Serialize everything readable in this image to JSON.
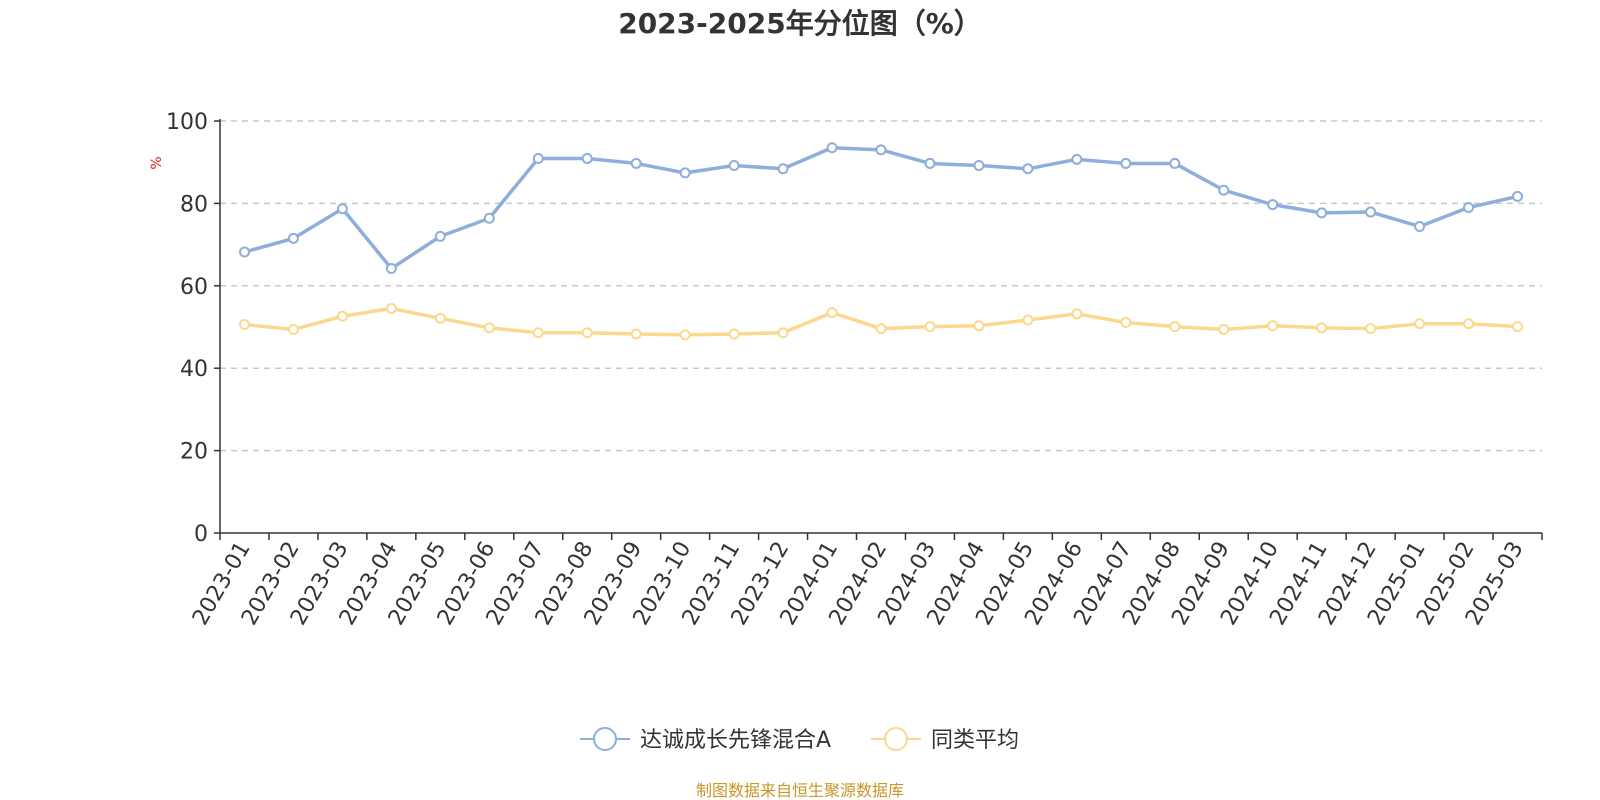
{
  "chart_data": {
    "type": "line",
    "title": "2023-2025年分位图（%）",
    "ylabel": "%",
    "ylim": [
      0,
      100
    ],
    "yticks": [
      0,
      20,
      40,
      60,
      80,
      100
    ],
    "grid": true,
    "legend_position": "bottom-center",
    "categories": [
      "2023-01",
      "2023-02",
      "2023-03",
      "2023-04",
      "2023-05",
      "2023-06",
      "2023-07",
      "2023-08",
      "2023-09",
      "2023-10",
      "2023-11",
      "2023-12",
      "2024-01",
      "2024-02",
      "2024-03",
      "2024-04",
      "2024-05",
      "2024-06",
      "2024-07",
      "2024-08",
      "2024-09",
      "2024-10",
      "2024-11",
      "2024-12",
      "2025-01",
      "2025-02",
      "2025-03"
    ],
    "series": [
      {
        "name": "达诚成长先锋混合A",
        "color": "#8eaedb",
        "values": [
          68.2,
          71.5,
          78.7,
          64.2,
          72.0,
          76.4,
          90.9,
          90.9,
          89.7,
          87.4,
          89.2,
          88.4,
          93.5,
          93.0,
          89.7,
          89.2,
          88.4,
          90.7,
          89.7,
          89.7,
          83.2,
          79.7,
          77.7,
          77.9,
          74.4,
          79.0,
          81.7
        ]
      },
      {
        "name": "同类平均",
        "color": "#fcd88f",
        "values": [
          50.6,
          49.4,
          52.6,
          54.5,
          52.1,
          49.8,
          48.6,
          48.6,
          48.3,
          48.1,
          48.3,
          48.6,
          53.5,
          49.6,
          50.1,
          50.3,
          51.7,
          53.2,
          51.1,
          50.1,
          49.4,
          50.3,
          49.8,
          49.6,
          50.8,
          50.8,
          50.1
        ]
      }
    ]
  },
  "source": "制图数据来自恒生聚源数据库"
}
